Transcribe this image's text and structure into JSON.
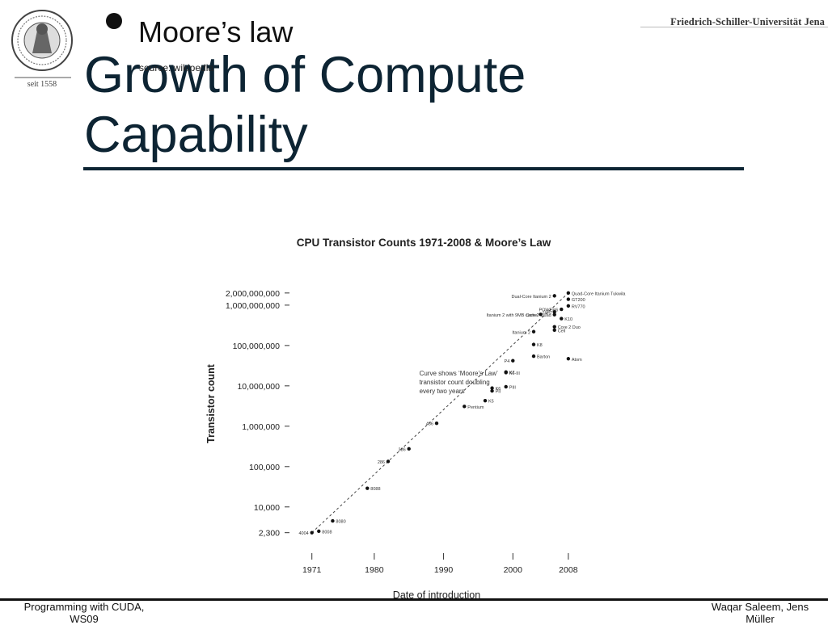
{
  "header": {
    "university": "Friedrich-Schiller-Universität Jena",
    "seal_text": "seit 1558"
  },
  "slide": {
    "title_line1": "Growth of Compute",
    "title_line2": "Capability",
    "bullet": "Moore’s law",
    "source": "source: wikipedia"
  },
  "footer": {
    "left_line1": "Programming with CUDA,",
    "left_line2": "WS09",
    "right_line1": "Waqar Saleem, Jens",
    "right_line2": "Müller"
  },
  "chart_data": {
    "type": "scatter",
    "title": "CPU Transistor Counts 1971-2008 & Moore’s Law",
    "xlabel": "Date of introduction",
    "ylabel": "Transistor count",
    "scale_y": "log",
    "xlim": [
      1968,
      2010
    ],
    "ylim": [
      1800,
      2500000000
    ],
    "x_ticks": [
      1971,
      1980,
      1990,
      2000,
      2008
    ],
    "y_ticks": [
      {
        "value": 2300,
        "label": "2,300"
      },
      {
        "value": 10000,
        "label": "10,000"
      },
      {
        "value": 100000,
        "label": "100,000"
      },
      {
        "value": 1000000,
        "label": "1,000,000"
      },
      {
        "value": 10000000,
        "label": "10,000,000"
      },
      {
        "value": 100000000,
        "label": "100,000,000"
      },
      {
        "value": 1000000000,
        "label": "1,000,000,000"
      },
      {
        "value": 2000000000,
        "label": "2,000,000,000"
      }
    ],
    "annotation": [
      "Curve shows ‘Moore’s Law’",
      "transistor count doubling",
      "every two years"
    ],
    "trend": {
      "x": [
        1971,
        2008
      ],
      "y": [
        2300,
        2000000000
      ]
    },
    "points": [
      {
        "name": "4004",
        "x": 1971,
        "y": 2300,
        "label_side": "left"
      },
      {
        "name": "8008",
        "x": 1972,
        "y": 2500,
        "label_side": "right"
      },
      {
        "name": "8080",
        "x": 1974,
        "y": 4500,
        "label_side": "right"
      },
      {
        "name": "8088",
        "x": 1979,
        "y": 29000,
        "label_side": "right"
      },
      {
        "name": "286",
        "x": 1982,
        "y": 134000,
        "label_side": "left"
      },
      {
        "name": "386",
        "x": 1985,
        "y": 275000,
        "label_side": "left"
      },
      {
        "name": "486",
        "x": 1989,
        "y": 1180000,
        "label_side": "left"
      },
      {
        "name": "Pentium",
        "x": 1993,
        "y": 3100000,
        "label_side": "right"
      },
      {
        "name": "K5",
        "x": 1996,
        "y": 4300000,
        "label_side": "right"
      },
      {
        "name": "K6",
        "x": 1997,
        "y": 8800000,
        "label_side": "right"
      },
      {
        "name": "PII",
        "x": 1997,
        "y": 7500000,
        "label_side": "right"
      },
      {
        "name": "PIII",
        "x": 1999,
        "y": 9500000,
        "label_side": "right"
      },
      {
        "name": "K7",
        "x": 1999,
        "y": 22000000,
        "label_side": "right"
      },
      {
        "name": "K6-III",
        "x": 1999,
        "y": 21300000,
        "label_side": "right"
      },
      {
        "name": "P4",
        "x": 2000,
        "y": 42000000,
        "label_side": "left"
      },
      {
        "name": "Barton",
        "x": 2003,
        "y": 54300000,
        "label_side": "right"
      },
      {
        "name": "Atom",
        "x": 2008,
        "y": 47000000,
        "label_side": "right"
      },
      {
        "name": "K8",
        "x": 2003,
        "y": 105900000,
        "label_side": "right"
      },
      {
        "name": "Itanium 2",
        "x": 2003,
        "y": 220000000,
        "label_side": "left"
      },
      {
        "name": "Core 2 Duo",
        "x": 2006,
        "y": 291000000,
        "label_side": "right"
      },
      {
        "name": "Cell",
        "x": 2006,
        "y": 241000000,
        "label_side": "right"
      },
      {
        "name": "Core 2 Quad",
        "x": 2006,
        "y": 582000000,
        "label_side": "left"
      },
      {
        "name": "K10",
        "x": 2007,
        "y": 463000000,
        "label_side": "right"
      },
      {
        "name": "Itanium 2 with 9MB cache",
        "x": 2004,
        "y": 592000000,
        "label_side": "left"
      },
      {
        "name": "G80",
        "x": 2006,
        "y": 681000000,
        "label_side": "left"
      },
      {
        "name": "POWER6",
        "x": 2007,
        "y": 789000000,
        "label_side": "left"
      },
      {
        "name": "RV770",
        "x": 2008,
        "y": 956000000,
        "label_side": "right"
      },
      {
        "name": "GT200",
        "x": 2008,
        "y": 1400000000,
        "label_side": "right"
      },
      {
        "name": "Dual-Core Itanium 2",
        "x": 2006,
        "y": 1700000000,
        "label_side": "left"
      },
      {
        "name": "Quad-Core Itanium Tukwila",
        "x": 2008,
        "y": 2000000000,
        "label_side": "right"
      }
    ]
  }
}
